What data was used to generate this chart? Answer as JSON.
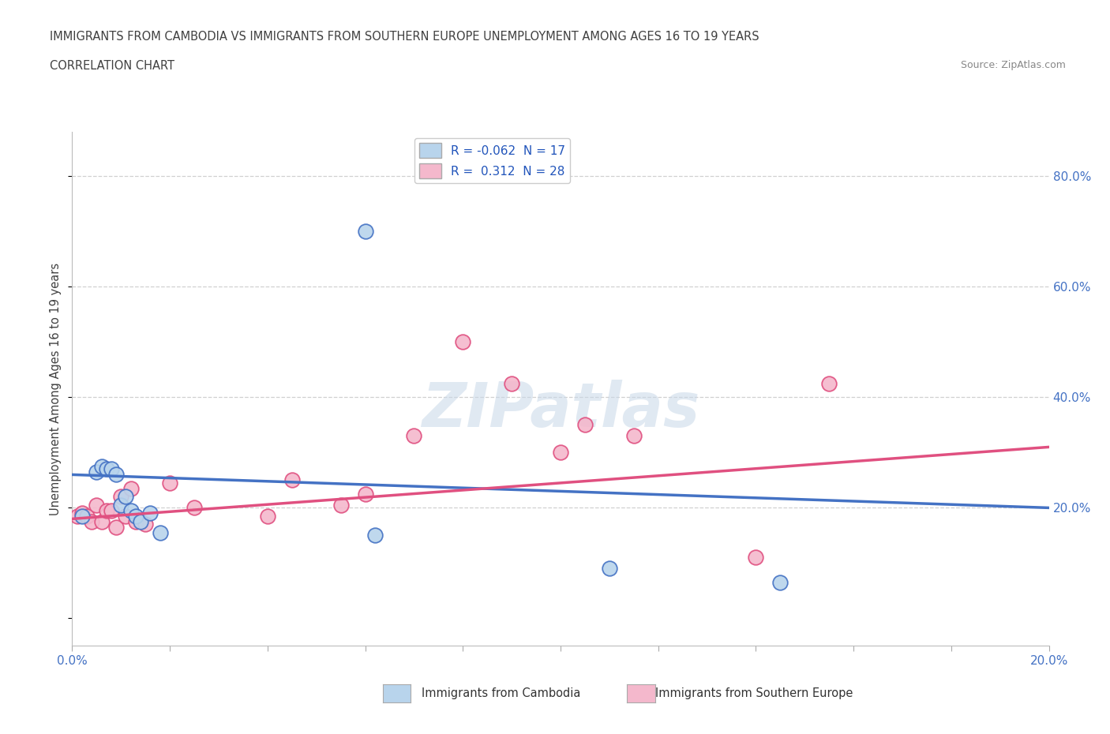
{
  "title_line1": "IMMIGRANTS FROM CAMBODIA VS IMMIGRANTS FROM SOUTHERN EUROPE UNEMPLOYMENT AMONG AGES 16 TO 19 YEARS",
  "title_line2": "CORRELATION CHART",
  "source": "Source: ZipAtlas.com",
  "ylabel": "Unemployment Among Ages 16 to 19 years",
  "xlim": [
    0.0,
    0.2
  ],
  "ylim": [
    -0.05,
    0.88
  ],
  "ytick_values": [
    0.0,
    0.2,
    0.4,
    0.6,
    0.8
  ],
  "xtick_values": [
    0.0,
    0.02,
    0.04,
    0.06,
    0.08,
    0.1,
    0.12,
    0.14,
    0.16,
    0.18,
    0.2
  ],
  "right_ytick_labels": [
    "20.0%",
    "40.0%",
    "60.0%",
    "80.0%"
  ],
  "right_ytick_values": [
    0.2,
    0.4,
    0.6,
    0.8
  ],
  "legend_entries": [
    {
      "label": "R = -0.062  N = 17",
      "color": "#b8d4ec"
    },
    {
      "label": "R =  0.312  N = 28",
      "color": "#f4b8cc"
    }
  ],
  "watermark": "ZIPatlas",
  "cambodia_scatter_x": [
    0.002,
    0.005,
    0.006,
    0.007,
    0.008,
    0.009,
    0.01,
    0.011,
    0.012,
    0.013,
    0.014,
    0.016,
    0.018,
    0.06,
    0.062,
    0.11,
    0.145
  ],
  "cambodia_scatter_y": [
    0.185,
    0.265,
    0.275,
    0.27,
    0.27,
    0.26,
    0.205,
    0.22,
    0.195,
    0.185,
    0.175,
    0.19,
    0.155,
    0.7,
    0.15,
    0.09,
    0.065
  ],
  "southern_europe_scatter_x": [
    0.001,
    0.002,
    0.003,
    0.004,
    0.005,
    0.006,
    0.007,
    0.008,
    0.009,
    0.01,
    0.011,
    0.012,
    0.013,
    0.015,
    0.02,
    0.025,
    0.04,
    0.045,
    0.055,
    0.06,
    0.07,
    0.08,
    0.09,
    0.1,
    0.105,
    0.115,
    0.14,
    0.155
  ],
  "southern_europe_scatter_y": [
    0.185,
    0.19,
    0.185,
    0.175,
    0.205,
    0.175,
    0.195,
    0.195,
    0.165,
    0.22,
    0.185,
    0.235,
    0.175,
    0.17,
    0.245,
    0.2,
    0.185,
    0.25,
    0.205,
    0.225,
    0.33,
    0.5,
    0.425,
    0.3,
    0.35,
    0.33,
    0.11,
    0.425
  ],
  "cambodia_line_x": [
    0.0,
    0.2
  ],
  "cambodia_line_y": [
    0.26,
    0.2
  ],
  "southern_europe_line_x": [
    0.0,
    0.2
  ],
  "southern_europe_line_y": [
    0.18,
    0.31
  ],
  "cambodia_color": "#4472c4",
  "southern_europe_color": "#e05080",
  "cambodia_scatter_color": "#b8d4ec",
  "southern_europe_scatter_color": "#f4b8cc",
  "grid_color": "#d0d0d0",
  "background_color": "#ffffff",
  "title_color": "#404040",
  "source_color": "#888888",
  "axis_label_color": "#404040",
  "tick_color": "#4472c4",
  "bottom_legend_labels": [
    "Immigrants from Cambodia",
    "Immigrants from Southern Europe"
  ]
}
